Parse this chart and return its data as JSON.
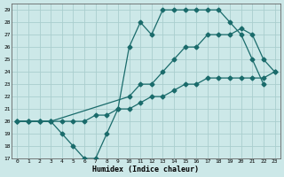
{
  "xlabel": "Humidex (Indice chaleur)",
  "bg_color": "#cce8e8",
  "grid_color": "#aacece",
  "line_color": "#1a6b6b",
  "xlim": [
    -0.5,
    23.5
  ],
  "ylim": [
    17,
    29.5
  ],
  "xticks": [
    0,
    1,
    2,
    3,
    4,
    5,
    6,
    7,
    8,
    9,
    10,
    11,
    12,
    13,
    14,
    15,
    16,
    17,
    18,
    19,
    20,
    21,
    22,
    23
  ],
  "yticks": [
    17,
    18,
    19,
    20,
    21,
    22,
    23,
    24,
    25,
    26,
    27,
    28,
    29
  ],
  "line1_x": [
    0,
    1,
    2,
    3,
    4,
    5,
    6,
    7,
    8,
    9,
    10,
    11,
    12,
    13,
    14,
    15,
    16,
    17,
    18,
    19,
    20,
    21,
    22
  ],
  "line1_y": [
    20,
    20,
    20,
    20,
    19,
    18,
    17,
    17,
    19,
    21,
    26,
    28,
    27,
    29,
    29,
    29,
    29,
    29,
    29,
    28,
    27,
    25,
    23
  ],
  "line2_x": [
    0,
    1,
    2,
    3,
    10,
    11,
    12,
    13,
    14,
    15,
    16,
    17,
    18,
    19,
    20,
    21,
    22,
    23
  ],
  "line2_y": [
    20,
    20,
    20,
    20,
    22,
    23,
    23,
    24,
    25,
    26,
    26,
    27,
    27,
    27,
    27.5,
    27,
    25,
    24
  ],
  "line3_x": [
    0,
    1,
    2,
    3,
    4,
    5,
    6,
    7,
    8,
    9,
    10,
    11,
    12,
    13,
    14,
    15,
    16,
    17,
    18,
    19,
    20,
    21,
    22,
    23
  ],
  "line3_y": [
    20,
    20,
    20,
    20,
    20,
    20,
    20,
    20.5,
    20.5,
    21,
    21,
    21.5,
    22,
    22,
    22.5,
    23,
    23,
    23.5,
    23.5,
    23.5,
    23.5,
    23.5,
    23.5,
    24
  ]
}
